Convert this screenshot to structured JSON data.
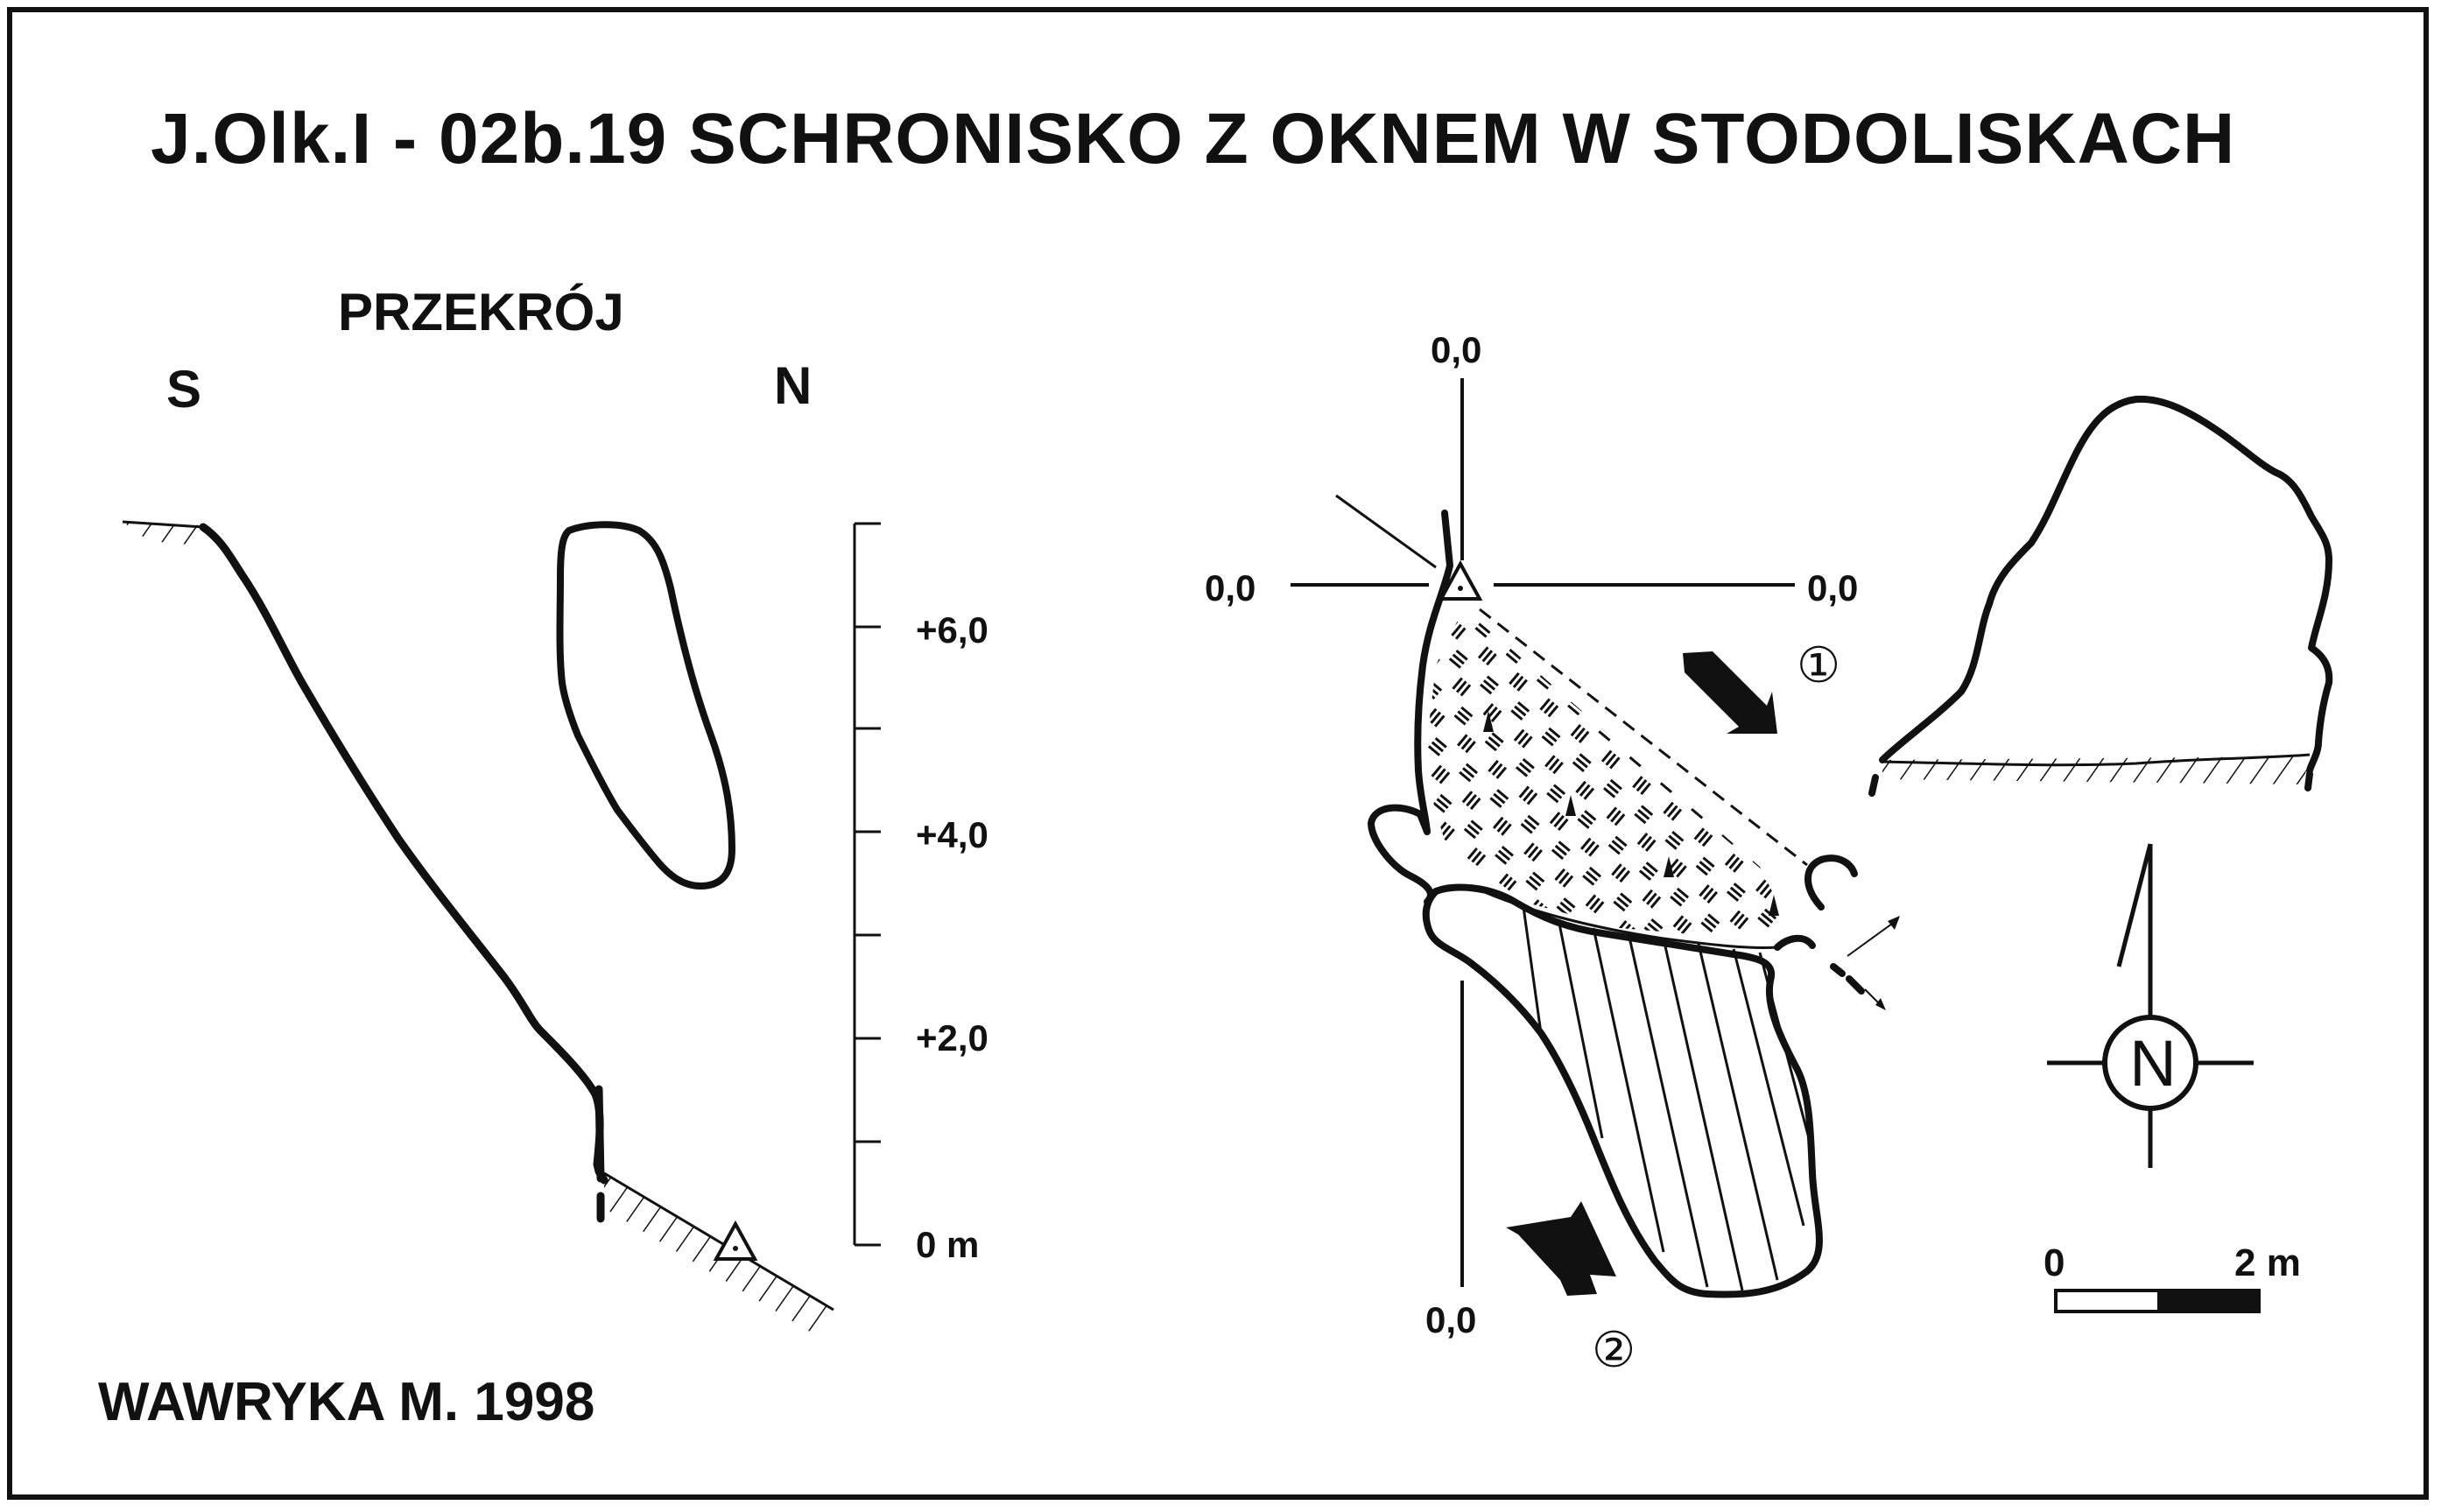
{
  "title": "J.Olk.I - 02b.19 SCHRONISKO Z OKNEM W STODOLISKACH",
  "section": {
    "label": "PRZEKRÓJ",
    "dir_left": "S",
    "dir_right": "N",
    "scale_ticks": [
      "+6,0",
      "+4,0",
      "+2,0",
      "0 m"
    ]
  },
  "plan": {
    "zero_labels": [
      "0,0",
      "0,0",
      "0,0",
      "0,0"
    ],
    "entrance_markers": [
      "①",
      "②"
    ]
  },
  "north_arrow": {
    "label": "N"
  },
  "scale_bar": {
    "start_label": "0",
    "end_label": "2 m"
  },
  "author": "WAWRYKA M. 1998",
  "colors": {
    "ink": "#111111",
    "paper": "#ffffff"
  },
  "icons": [
    "datum-triangle-icon",
    "entrance-arrow-icon",
    "north-arrow-icon"
  ]
}
